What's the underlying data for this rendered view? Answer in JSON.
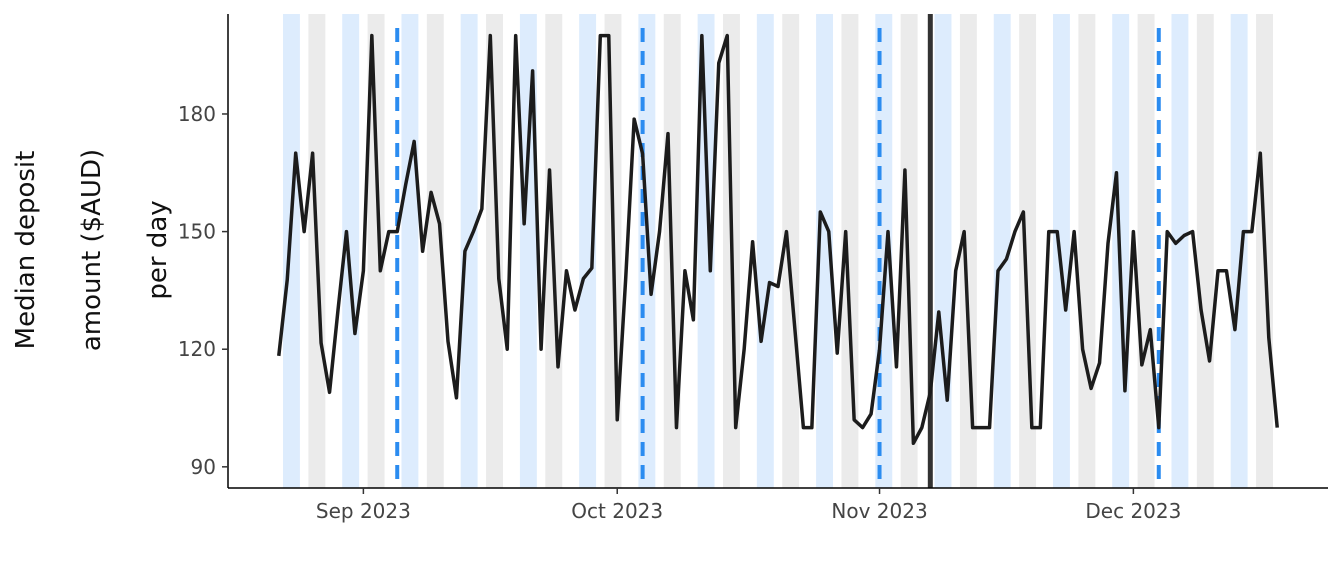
{
  "chart_data": {
    "type": "line",
    "y_label": [
      "Median deposit",
      "amount ($AUD)",
      "per day"
    ],
    "x": [
      "2023-08-22",
      "2023-08-23",
      "2023-08-24",
      "2023-08-25",
      "2023-08-26",
      "2023-08-27",
      "2023-08-28",
      "2023-08-29",
      "2023-08-30",
      "2023-08-31",
      "2023-09-01",
      "2023-09-02",
      "2023-09-03",
      "2023-09-04",
      "2023-09-05",
      "2023-09-06",
      "2023-09-07",
      "2023-09-08",
      "2023-09-09",
      "2023-09-10",
      "2023-09-11",
      "2023-09-12",
      "2023-09-13",
      "2023-09-14",
      "2023-09-15",
      "2023-09-16",
      "2023-09-17",
      "2023-09-18",
      "2023-09-19",
      "2023-09-20",
      "2023-09-21",
      "2023-09-22",
      "2023-09-23",
      "2023-09-24",
      "2023-09-25",
      "2023-09-26",
      "2023-09-27",
      "2023-09-28",
      "2023-09-29",
      "2023-09-30",
      "2023-10-01",
      "2023-10-02",
      "2023-10-03",
      "2023-10-04",
      "2023-10-05",
      "2023-10-06",
      "2023-10-07",
      "2023-10-08",
      "2023-10-09",
      "2023-10-10",
      "2023-10-11",
      "2023-10-12",
      "2023-10-13",
      "2023-10-14",
      "2023-10-15",
      "2023-10-16",
      "2023-10-17",
      "2023-10-18",
      "2023-10-19",
      "2023-10-20",
      "2023-10-21",
      "2023-10-22",
      "2023-10-23",
      "2023-10-24",
      "2023-10-25",
      "2023-10-26",
      "2023-10-27",
      "2023-10-28",
      "2023-10-29",
      "2023-10-30",
      "2023-10-31",
      "2023-11-01",
      "2023-11-02",
      "2023-11-03",
      "2023-11-04",
      "2023-11-05",
      "2023-11-06",
      "2023-11-07",
      "2023-11-08",
      "2023-11-09",
      "2023-11-10",
      "2023-11-11",
      "2023-11-12",
      "2023-11-13",
      "2023-11-14",
      "2023-11-15",
      "2023-11-16",
      "2023-11-17",
      "2023-11-18",
      "2023-11-19",
      "2023-11-20",
      "2023-11-21",
      "2023-11-22",
      "2023-11-23",
      "2023-11-24",
      "2023-11-25",
      "2023-11-26",
      "2023-11-27",
      "2023-11-28",
      "2023-11-29",
      "2023-11-30",
      "2023-12-01",
      "2023-12-02",
      "2023-12-03",
      "2023-12-04",
      "2023-12-05",
      "2023-12-06",
      "2023-12-07",
      "2023-12-08",
      "2023-12-09",
      "2023-12-10",
      "2023-12-11",
      "2023-12-12",
      "2023-12-13",
      "2023-12-14",
      "2023-12-15",
      "2023-12-16",
      "2023-12-17",
      "2023-12-18"
    ],
    "values": [
      118.3,
      137.7,
      170,
      150,
      170,
      121.6,
      109,
      130,
      150,
      124,
      140,
      200,
      140,
      150,
      150,
      162,
      173,
      145,
      160,
      152,
      122,
      107.6,
      145,
      150,
      155.8,
      200,
      138,
      120,
      200,
      152,
      191,
      120,
      165.7,
      115.5,
      140,
      130,
      138,
      140.7,
      200,
      200,
      102,
      138,
      178.7,
      169.8,
      134,
      150,
      175,
      100,
      140,
      127.5,
      200,
      140,
      193,
      200,
      100,
      120,
      147.4,
      122,
      137,
      136,
      150,
      125,
      100,
      100,
      155,
      150,
      119,
      150,
      102,
      100,
      103.5,
      120,
      150,
      115.5,
      165.7,
      96,
      100,
      109,
      129.5,
      107,
      140,
      150,
      100,
      100,
      100,
      140,
      143,
      150,
      155,
      100,
      100,
      150,
      150,
      130,
      150,
      120,
      110,
      116.5,
      147,
      165,
      109.4,
      150,
      116,
      125,
      100,
      150,
      147,
      149,
      150,
      130,
      117,
      140,
      140,
      125,
      150,
      150,
      170,
      123,
      100
    ],
    "color": "#1c1c1c",
    "bands": [
      {
        "color": "#ddecfd",
        "starts": [
          "2023-08-23",
          "2023-08-30",
          "2023-09-06",
          "2023-09-13",
          "2023-09-20",
          "2023-09-27",
          "2023-10-04",
          "2023-10-11",
          "2023-10-18",
          "2023-10-25",
          "2023-11-01",
          "2023-11-08",
          "2023-11-15",
          "2023-11-22",
          "2023-11-29",
          "2023-12-06",
          "2023-12-13"
        ]
      },
      {
        "color": "#ebebeb",
        "starts": [
          "2023-08-26",
          "2023-09-02",
          "2023-09-09",
          "2023-09-16",
          "2023-09-23",
          "2023-09-30",
          "2023-10-07",
          "2023-10-14",
          "2023-10-21",
          "2023-10-28",
          "2023-11-04",
          "2023-11-11",
          "2023-11-18",
          "2023-11-25",
          "2023-12-02",
          "2023-12-09",
          "2023-12-16"
        ]
      }
    ],
    "dashed_lines": {
      "color": "#2b8cf0",
      "x": [
        "2023-09-05",
        "2023-10-04",
        "2023-11-01",
        "2023-12-04"
      ]
    },
    "solid_line": {
      "color": "#333333",
      "x": "2023-11-07"
    },
    "xlim": [
      "2023-08-16",
      "2023-12-24"
    ],
    "xticks": [
      {
        "value": "2023-09-01",
        "label": "Sep 2023"
      },
      {
        "value": "2023-10-01",
        "label": "Oct 2023"
      },
      {
        "value": "2023-11-01",
        "label": "Nov 2023"
      },
      {
        "value": "2023-12-01",
        "label": "Dec 2023"
      }
    ],
    "ylim": [
      84.6,
      205.5
    ],
    "yticks": [
      90,
      120,
      150,
      180
    ]
  }
}
